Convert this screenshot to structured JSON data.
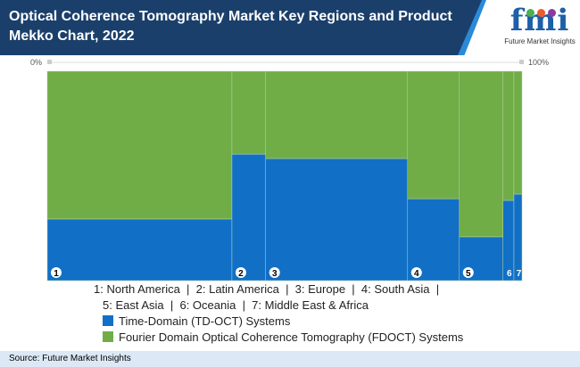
{
  "header": {
    "title": "Optical Coherence Tomography Market Key Regions and Product Mekko Chart, 2022"
  },
  "logo": {
    "mark": "fmi",
    "tagline": "Future Market Insights"
  },
  "chart_data": {
    "type": "mekko",
    "title": "Optical Coherence Tomography Market Key Regions and Product Mekko Chart, 2022",
    "axis": {
      "start_label": "0%",
      "end_label": "100%"
    },
    "categories": [
      "North America",
      "Latin America",
      "Europe",
      "South Asia",
      "East Asia",
      "Oceania",
      "Middle East & Africa"
    ],
    "category_numbers": [
      "1",
      "2",
      "3",
      "4",
      "5",
      "6",
      "7"
    ],
    "widths_pct": [
      38.9,
      7.1,
      29.9,
      10.9,
      9.2,
      2.3,
      1.7
    ],
    "series": [
      {
        "name": "Time-Domain (TD-OCT) Systems",
        "color": "#1170c6",
        "values_pct": [
          29.4,
          60.4,
          58.3,
          39.1,
          20.9,
          38.3,
          41.3
        ]
      },
      {
        "name": "Fourier Domain Optical Coherence Tomography (FDOCT) Systems",
        "color": "#70ad47",
        "values_pct": [
          70.6,
          39.6,
          41.7,
          60.9,
          79.1,
          61.7,
          58.7
        ]
      }
    ]
  },
  "legend": {
    "key_lines": [
      "1: North America  |  2: Latin America  |  3: Europe  |  4: South Asia  |",
      "5: East Asia  |  6: Oceania  |  7: Middle East & Africa"
    ]
  },
  "footer": {
    "source": "Source: Future Market Insights"
  }
}
